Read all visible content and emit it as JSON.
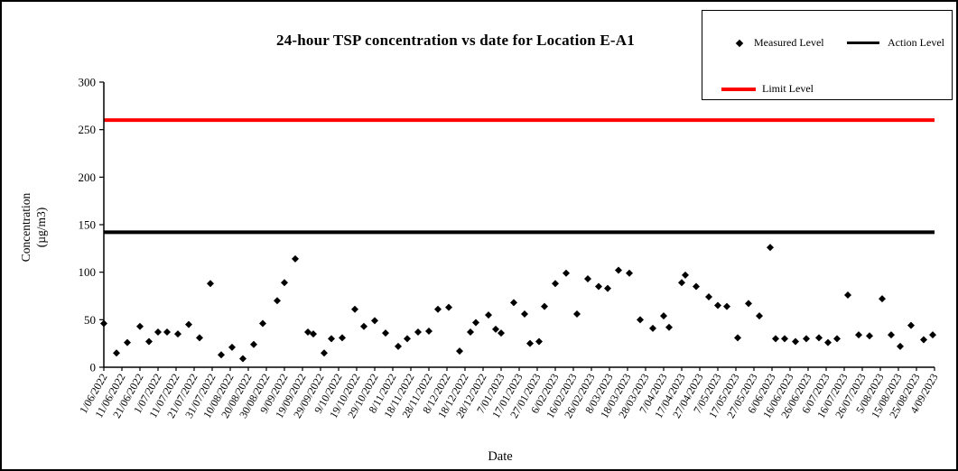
{
  "chart_data": {
    "type": "scatter",
    "title": "24-hour TSP concentration vs date for Location E-A1",
    "xlabel": "Date",
    "ylabel": "Concentration (µg/m3)",
    "ylabel_lines": [
      "Concentration",
      "(µg/m3)"
    ],
    "ylim": [
      0,
      300
    ],
    "yticks": [
      0,
      50,
      100,
      150,
      200,
      250,
      300
    ],
    "grid": false,
    "legend_position": "top-right",
    "legend": {
      "measured": "Measured Level",
      "action": "Action Level",
      "limit": "Limit Level"
    },
    "x_tick_labels": [
      "1/06/2022",
      "11/06/2022",
      "21/06/2022",
      "1/07/2022",
      "11/07/2022",
      "21/07/2022",
      "31/07/2022",
      "10/08/2022",
      "20/08/2022",
      "30/08/2022",
      "9/09/2022",
      "19/09/2022",
      "29/09/2022",
      "9/10/2022",
      "19/10/2022",
      "29/10/2022",
      "8/11/2022",
      "18/11/2022",
      "28/11/2022",
      "8/12/2022",
      "18/12/2022",
      "28/12/2022",
      "7/01/2023",
      "17/01/2023",
      "27/01/2023",
      "6/02/2023",
      "16/02/2023",
      "26/02/2023",
      "8/03/2023",
      "18/03/2023",
      "28/03/2023",
      "7/04/2023",
      "17/04/2023",
      "27/04/2023",
      "7/05/2023",
      "17/05/2023",
      "27/05/2023",
      "6/06/2023",
      "16/06/2023",
      "26/06/2023",
      "6/07/2023",
      "16/07/2023",
      "26/07/2023",
      "5/08/2023",
      "15/08/2023",
      "25/08/2023",
      "4/09/2023"
    ],
    "reference_lines": [
      {
        "name": "Action Level",
        "value": 142,
        "color": "#000000"
      },
      {
        "name": "Limit Level",
        "value": 260,
        "color": "#ff0000"
      }
    ],
    "series": [
      {
        "name": "Measured Level",
        "marker": "diamond",
        "color": "#000000",
        "points": [
          {
            "date": "1/06/2022",
            "value": 46
          },
          {
            "date": "8/06/2022",
            "value": 15
          },
          {
            "date": "14/06/2022",
            "value": 26
          },
          {
            "date": "21/06/2022",
            "value": 43
          },
          {
            "date": "26/06/2022",
            "value": 27
          },
          {
            "date": "1/07/2022",
            "value": 37
          },
          {
            "date": "6/07/2022",
            "value": 37
          },
          {
            "date": "12/07/2022",
            "value": 35
          },
          {
            "date": "18/07/2022",
            "value": 45
          },
          {
            "date": "24/07/2022",
            "value": 31
          },
          {
            "date": "30/07/2022",
            "value": 88
          },
          {
            "date": "5/08/2022",
            "value": 13
          },
          {
            "date": "11/08/2022",
            "value": 21
          },
          {
            "date": "17/08/2022",
            "value": 9
          },
          {
            "date": "23/08/2022",
            "value": 24
          },
          {
            "date": "28/08/2022",
            "value": 46
          },
          {
            "date": "5/09/2022",
            "value": 70
          },
          {
            "date": "9/09/2022",
            "value": 89
          },
          {
            "date": "15/09/2022",
            "value": 114
          },
          {
            "date": "22/09/2022",
            "value": 37
          },
          {
            "date": "25/09/2022",
            "value": 35
          },
          {
            "date": "1/10/2022",
            "value": 15
          },
          {
            "date": "5/10/2022",
            "value": 30
          },
          {
            "date": "11/10/2022",
            "value": 31
          },
          {
            "date": "18/10/2022",
            "value": 61
          },
          {
            "date": "23/10/2022",
            "value": 43
          },
          {
            "date": "29/10/2022",
            "value": 49
          },
          {
            "date": "4/11/2022",
            "value": 36
          },
          {
            "date": "11/11/2022",
            "value": 22
          },
          {
            "date": "16/11/2022",
            "value": 30
          },
          {
            "date": "22/11/2022",
            "value": 37
          },
          {
            "date": "28/11/2022",
            "value": 38
          },
          {
            "date": "3/12/2022",
            "value": 61
          },
          {
            "date": "9/12/2022",
            "value": 63
          },
          {
            "date": "15/12/2022",
            "value": 17
          },
          {
            "date": "21/12/2022",
            "value": 37
          },
          {
            "date": "24/12/2022",
            "value": 47
          },
          {
            "date": "31/12/2022",
            "value": 55
          },
          {
            "date": "4/01/2023",
            "value": 40
          },
          {
            "date": "7/01/2023",
            "value": 36
          },
          {
            "date": "14/01/2023",
            "value": 68
          },
          {
            "date": "20/01/2023",
            "value": 56
          },
          {
            "date": "23/01/2023",
            "value": 25
          },
          {
            "date": "28/01/2023",
            "value": 27
          },
          {
            "date": "31/01/2023",
            "value": 64
          },
          {
            "date": "6/02/2023",
            "value": 88
          },
          {
            "date": "12/02/2023",
            "value": 99
          },
          {
            "date": "18/02/2023",
            "value": 56
          },
          {
            "date": "24/02/2023",
            "value": 93
          },
          {
            "date": "2/03/2023",
            "value": 85
          },
          {
            "date": "7/03/2023",
            "value": 83
          },
          {
            "date": "13/03/2023",
            "value": 102
          },
          {
            "date": "19/03/2023",
            "value": 99
          },
          {
            "date": "25/03/2023",
            "value": 50
          },
          {
            "date": "1/04/2023",
            "value": 41
          },
          {
            "date": "7/04/2023",
            "value": 54
          },
          {
            "date": "10/04/2023",
            "value": 42
          },
          {
            "date": "17/04/2023",
            "value": 89
          },
          {
            "date": "19/04/2023",
            "value": 97
          },
          {
            "date": "25/04/2023",
            "value": 85
          },
          {
            "date": "2/05/2023",
            "value": 74
          },
          {
            "date": "7/05/2023",
            "value": 65
          },
          {
            "date": "12/05/2023",
            "value": 64
          },
          {
            "date": "18/05/2023",
            "value": 31
          },
          {
            "date": "24/05/2023",
            "value": 67
          },
          {
            "date": "30/05/2023",
            "value": 54
          },
          {
            "date": "5/06/2023",
            "value": 126
          },
          {
            "date": "8/06/2023",
            "value": 30
          },
          {
            "date": "13/06/2023",
            "value": 30
          },
          {
            "date": "19/06/2023",
            "value": 27
          },
          {
            "date": "25/06/2023",
            "value": 30
          },
          {
            "date": "2/07/2023",
            "value": 31
          },
          {
            "date": "7/07/2023",
            "value": 26
          },
          {
            "date": "12/07/2023",
            "value": 30
          },
          {
            "date": "18/07/2023",
            "value": 76
          },
          {
            "date": "24/07/2023",
            "value": 34
          },
          {
            "date": "30/07/2023",
            "value": 33
          },
          {
            "date": "6/08/2023",
            "value": 72
          },
          {
            "date": "11/08/2023",
            "value": 34
          },
          {
            "date": "16/08/2023",
            "value": 22
          },
          {
            "date": "22/08/2023",
            "value": 44
          },
          {
            "date": "29/08/2023",
            "value": 29
          },
          {
            "date": "3/09/2023",
            "value": 34
          }
        ]
      }
    ],
    "colors": {
      "background": "#ffffff",
      "border": "#000000",
      "marker": "#000000",
      "action_line": "#000000",
      "limit_line": "#ff0000"
    }
  }
}
